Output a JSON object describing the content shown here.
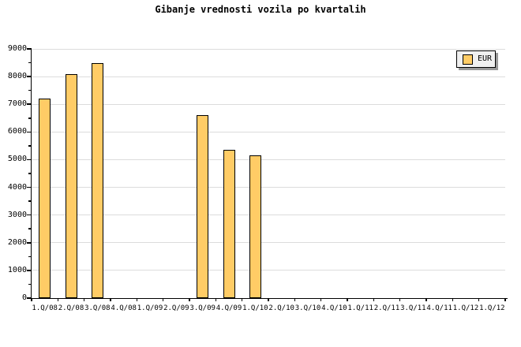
{
  "chart_data": {
    "type": "bar",
    "title": "Gibanje vrednosti vozila po kvartalih",
    "categories": [
      "1.Q/08",
      "2.Q/08",
      "3.Q/08",
      "4.Q/08",
      "1.Q/09",
      "2.Q/09",
      "3.Q/09",
      "4.Q/09",
      "1.Q/10",
      "2.Q/10",
      "3.Q/10",
      "4.Q/10",
      "1.Q/11",
      "2.Q/11",
      "3.Q/11",
      "4.Q/11",
      "1.Q/12",
      "1.Q/12"
    ],
    "series": [
      {
        "name": "EUR",
        "values": [
          7200,
          8100,
          8500,
          null,
          null,
          null,
          6600,
          5350,
          5150,
          null,
          null,
          null,
          null,
          null,
          null,
          null,
          null,
          null
        ]
      }
    ],
    "xlabel": "",
    "ylabel": "",
    "ylim": [
      0,
      9000
    ],
    "y_ticks": [
      0,
      1000,
      2000,
      3000,
      4000,
      5000,
      6000,
      7000,
      8000,
      9000
    ],
    "y_minor_tick_step": 500,
    "grid": "horizontal",
    "legend_position": "top-right",
    "colors": {
      "bar_fill": "#FFCC66",
      "bar_border": "#000000",
      "gridline": "#DCDCDC",
      "axis": "#000000",
      "legend_bg": "#F0F0F0",
      "legend_shadow": "#999999",
      "background": "#FFFFFF"
    }
  }
}
